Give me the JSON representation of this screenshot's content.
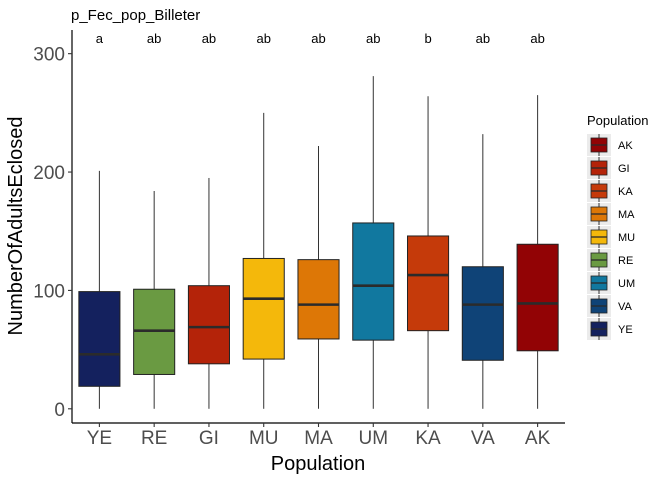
{
  "chart_data": {
    "type": "boxplot",
    "title": "p_Fec_pop_Billeter",
    "xlabel": "Population",
    "ylabel": "NumberOfAdultsEclosed",
    "ylim": [
      -12,
      320
    ],
    "yticks": [
      0,
      100,
      200,
      300
    ],
    "grid": false,
    "legend_position": "right",
    "legend_title": "Population",
    "categories": [
      "YE",
      "RE",
      "GI",
      "MU",
      "MA",
      "UM",
      "KA",
      "VA",
      "AK"
    ],
    "significance_labels": [
      "a",
      "ab",
      "ab",
      "ab",
      "ab",
      "ab",
      "b",
      "ab",
      "ab"
    ],
    "boxes": [
      {
        "name": "YE",
        "min": 0,
        "q1": 19,
        "median": 46,
        "q3": 99,
        "max": 201,
        "color": "#14215e"
      },
      {
        "name": "RE",
        "min": 0,
        "q1": 29,
        "median": 66,
        "q3": 101,
        "max": 184,
        "color": "#6a9a42"
      },
      {
        "name": "GI",
        "min": 0,
        "q1": 38,
        "median": 69,
        "q3": 104,
        "max": 195,
        "color": "#b42309"
      },
      {
        "name": "MU",
        "min": 0,
        "q1": 42,
        "median": 93,
        "q3": 127,
        "max": 250,
        "color": "#f4b80b"
      },
      {
        "name": "MA",
        "min": 0,
        "q1": 59,
        "median": 88,
        "q3": 126,
        "max": 222,
        "color": "#dd7706"
      },
      {
        "name": "UM",
        "min": 0,
        "q1": 58,
        "median": 104,
        "q3": 157,
        "max": 281,
        "color": "#11789f"
      },
      {
        "name": "KA",
        "min": 0,
        "q1": 66,
        "median": 113,
        "q3": 146,
        "max": 264,
        "color": "#c53a0a"
      },
      {
        "name": "VA",
        "min": 0,
        "q1": 41,
        "median": 88,
        "q3": 120,
        "max": 232,
        "color": "#0f4377"
      },
      {
        "name": "AK",
        "min": 0,
        "q1": 49,
        "median": 89,
        "q3": 139,
        "max": 265,
        "color": "#920305"
      }
    ],
    "legend": [
      {
        "label": "AK",
        "color": "#920305"
      },
      {
        "label": "GI",
        "color": "#b42309"
      },
      {
        "label": "KA",
        "color": "#c53a0a"
      },
      {
        "label": "MA",
        "color": "#dd7706"
      },
      {
        "label": "MU",
        "color": "#f4b80b"
      },
      {
        "label": "RE",
        "color": "#6a9a42"
      },
      {
        "label": "UM",
        "color": "#11789f"
      },
      {
        "label": "VA",
        "color": "#0f4377"
      },
      {
        "label": "YE",
        "color": "#14215e"
      }
    ]
  }
}
